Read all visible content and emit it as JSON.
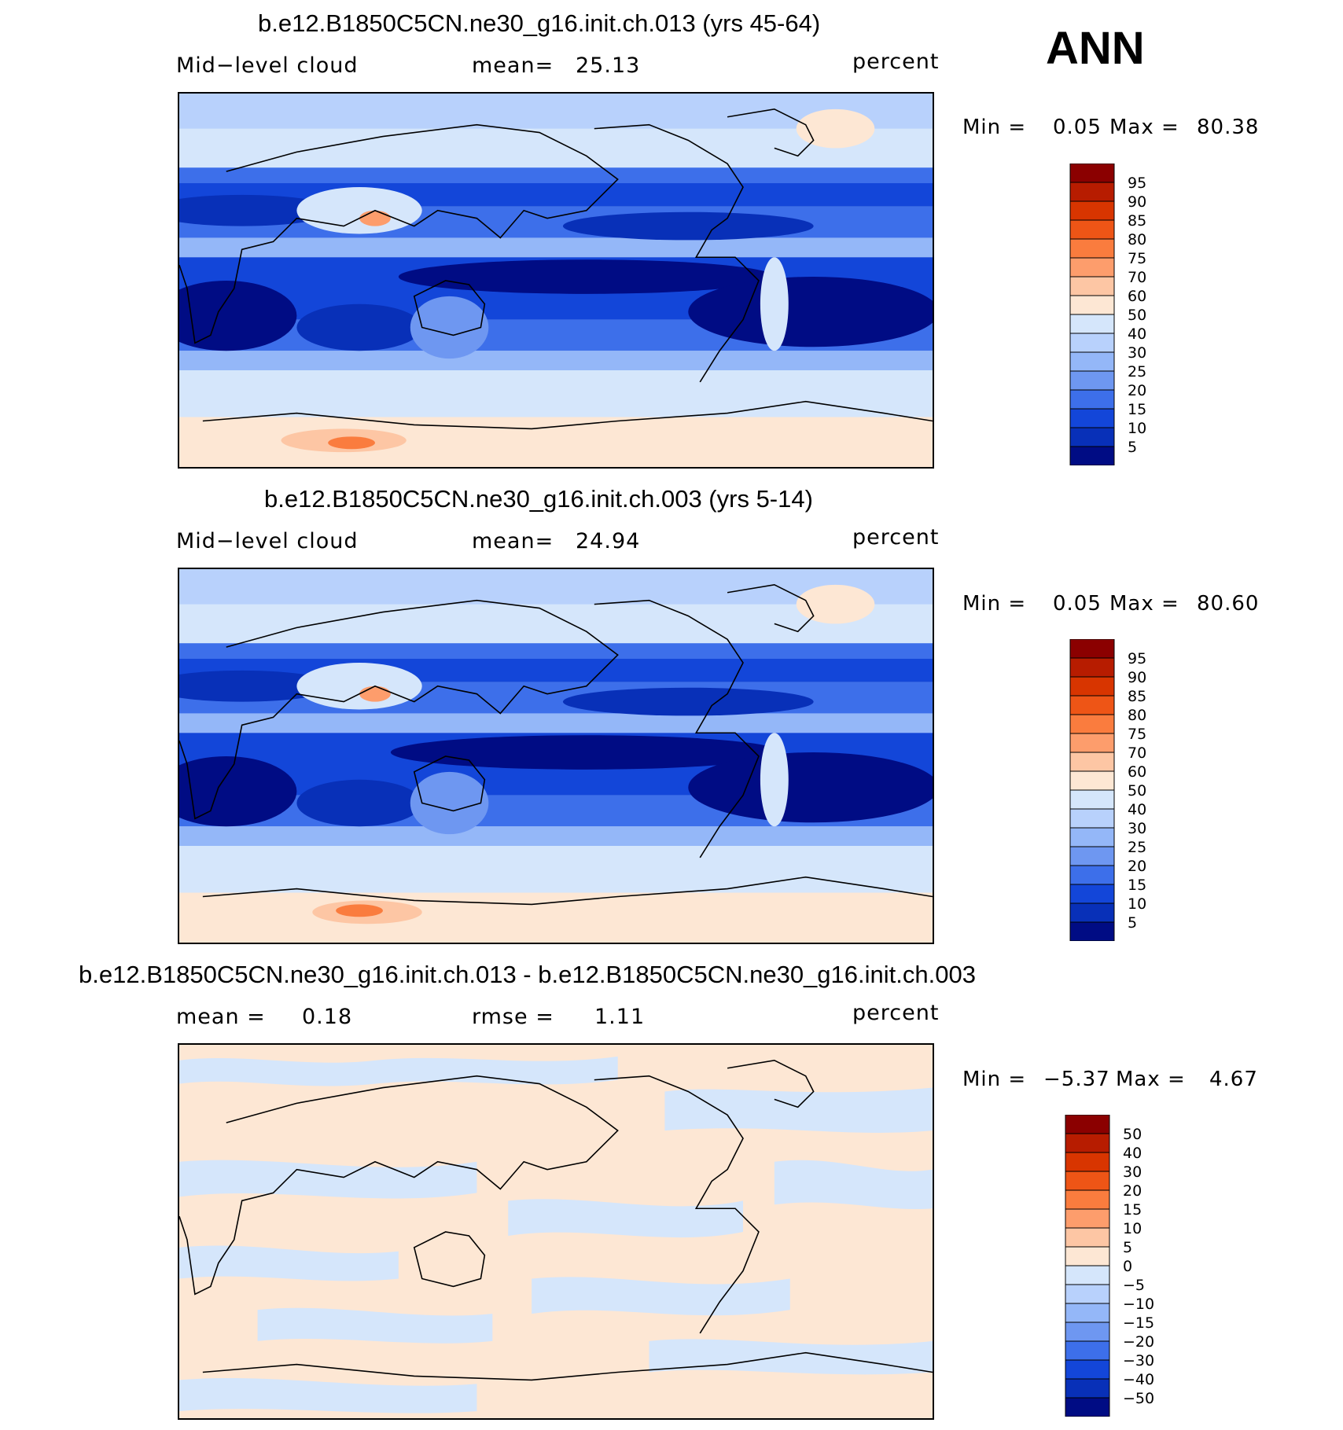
{
  "season_label": "ANN",
  "panels": [
    {
      "title": "b.e12.B1850C5CN.ne30_g16.init.ch.013 (yrs 45-64)",
      "left_label": "Mid−level cloud",
      "mid_label": "mean=",
      "mid_value": "25.13",
      "units": "percent",
      "min_label": "Min =",
      "min_value": "0.05",
      "max_label": "Max =",
      "max_value": "80.38"
    },
    {
      "title": "b.e12.B1850C5CN.ne30_g16.init.ch.003 (yrs 5-14)",
      "left_label": "Mid−level cloud",
      "mid_label": "mean=",
      "mid_value": "24.94",
      "units": "percent",
      "min_label": "Min =",
      "min_value": "0.05",
      "max_label": "Max =",
      "max_value": "80.60"
    },
    {
      "title": "b.e12.B1850C5CN.ne30_g16.init.ch.013 - b.e12.B1850C5CN.ne30_g16.init.ch.003",
      "left_label": "mean =",
      "left_value": "0.18",
      "mid_label": "rmse =",
      "mid_value": "1.11",
      "units": "percent",
      "min_label": "Min =",
      "min_value": "−5.37",
      "max_label": "Max =",
      "max_value": "4.67"
    }
  ],
  "chart_data": [
    {
      "type": "heatmap",
      "title": "b.e12.B1850C5CN.ne30_g16.init.ch.013 (yrs 45-64)",
      "variable": "Mid-level cloud",
      "units": "percent",
      "mean": 25.13,
      "min": 0.05,
      "max": 80.38,
      "colorbar_levels": [
        "95",
        "90",
        "85",
        "80",
        "75",
        "70",
        "60",
        "50",
        "40",
        "30",
        "25",
        "20",
        "15",
        "10",
        "5"
      ],
      "colorbar_colors": [
        "#8b0000",
        "#b71c00",
        "#d83500",
        "#ee5516",
        "#fa7c3e",
        "#fd9d6c",
        "#fdc6a4",
        "#fde7d4",
        "#d5e6fb",
        "#b8d1fc",
        "#94b7f8",
        "#6e97f1",
        "#3d6fea",
        "#1346d9",
        "#0830b8",
        "#000c84"
      ],
      "note_colors_order": "top to bottom"
    },
    {
      "type": "heatmap",
      "title": "b.e12.B1850C5CN.ne30_g16.init.ch.003 (yrs 5-14)",
      "variable": "Mid-level cloud",
      "units": "percent",
      "mean": 24.94,
      "min": 0.05,
      "max": 80.6,
      "colorbar_levels": [
        "95",
        "90",
        "85",
        "80",
        "75",
        "70",
        "60",
        "50",
        "40",
        "30",
        "25",
        "20",
        "15",
        "10",
        "5"
      ],
      "colorbar_colors": [
        "#8b0000",
        "#b71c00",
        "#d83500",
        "#ee5516",
        "#fa7c3e",
        "#fd9d6c",
        "#fdc6a4",
        "#fde7d4",
        "#d5e6fb",
        "#b8d1fc",
        "#94b7f8",
        "#6e97f1",
        "#3d6fea",
        "#1346d9",
        "#0830b8",
        "#000c84"
      ]
    },
    {
      "type": "heatmap",
      "title": "b.e12.B1850C5CN.ne30_g16.init.ch.013 - b.e12.B1850C5CN.ne30_g16.init.ch.003",
      "units": "percent",
      "mean": 0.18,
      "rmse": 1.11,
      "min": -5.37,
      "max": 4.67,
      "colorbar_levels": [
        "50",
        "40",
        "30",
        "20",
        "15",
        "10",
        "5",
        "0",
        "−5",
        "−10",
        "−15",
        "−20",
        "−30",
        "−40",
        "−50"
      ],
      "colorbar_colors": [
        "#8b0000",
        "#b71c00",
        "#d83500",
        "#ee5516",
        "#fa7c3e",
        "#fd9d6c",
        "#fdc6a4",
        "#fde7d4",
        "#d5e6fb",
        "#b8d1fc",
        "#94b7f8",
        "#6e97f1",
        "#3d6fea",
        "#1346d9",
        "#0830b8",
        "#000c84"
      ]
    }
  ]
}
